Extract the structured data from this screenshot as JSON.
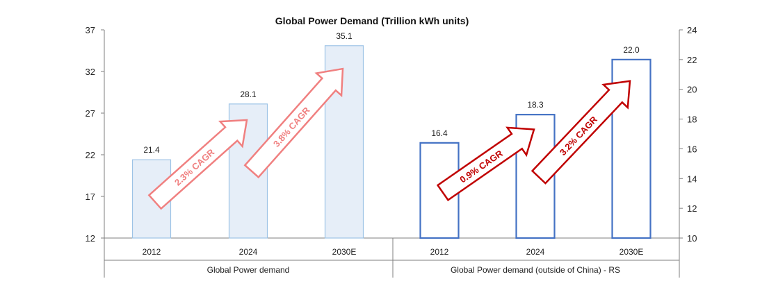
{
  "chart_data": {
    "type": "bar",
    "title": "Global Power Demand (Trillion kWh units)",
    "left_axis": {
      "ylim": [
        12,
        37
      ],
      "ticks": [
        12,
        17,
        22,
        27,
        32,
        37
      ]
    },
    "right_axis": {
      "ylim": [
        10,
        24
      ],
      "ticks": [
        10,
        12,
        14,
        16,
        18,
        20,
        22,
        24
      ]
    },
    "groups": [
      {
        "label": "Global Power demand",
        "axis": "left",
        "categories": [
          "2012",
          "2024",
          "2030E"
        ],
        "values": [
          21.4,
          28.1,
          35.1
        ],
        "value_labels": [
          "21.4",
          "28.1",
          "35.1"
        ],
        "style": "filled",
        "color": "#9dc3e6",
        "fill": "#e6eef8",
        "cagr": [
          {
            "label": "2.3% CAGR",
            "color": "#f08080"
          },
          {
            "label": "3.8% CAGR",
            "color": "#f08080"
          }
        ]
      },
      {
        "label": "Global Power demand (outside of China) - RS",
        "axis": "right",
        "categories": [
          "2012",
          "2024",
          "2030E"
        ],
        "values": [
          16.4,
          18.3,
          22.0
        ],
        "value_labels": [
          "16.4",
          "18.3",
          "22.0"
        ],
        "style": "outline",
        "color": "#4472c4",
        "fill": "#ffffff",
        "cagr": [
          {
            "label": "0.9% CAGR",
            "color": "#c00000"
          },
          {
            "label": "3.2% CAGR",
            "color": "#c00000"
          }
        ]
      }
    ]
  }
}
